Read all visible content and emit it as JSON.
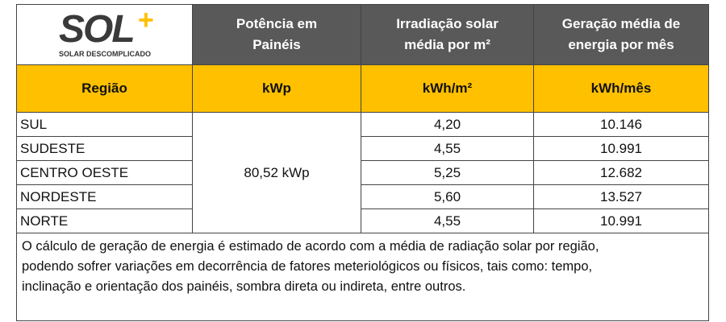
{
  "logo": {
    "name": "SOL",
    "plus": "+",
    "tagline": "SOLAR DESCOMPLICADO"
  },
  "header": {
    "columns": [
      [
        "Potência em",
        "Painéis"
      ],
      [
        "Irradiação solar",
        "média por m²"
      ],
      [
        "Geração média de",
        "energia por mês"
      ]
    ]
  },
  "units": [
    "Região",
    "kWp",
    "kWh/m²",
    "kWh/mês"
  ],
  "table": {
    "power": "80,52 kWp",
    "rows": [
      [
        "SUL",
        "4,20",
        "10.146"
      ],
      [
        "SUDESTE",
        "4,55",
        "10.991"
      ],
      [
        "CENTRO OESTE",
        "5,25",
        "12.682"
      ],
      [
        "NORDESTE",
        "5,60",
        "13.527"
      ],
      [
        "NORTE",
        "4,55",
        "10.991"
      ]
    ]
  },
  "note": [
    "O cálculo de geração de energia é estimado de acordo com a média de radiação solar por região,",
    "podendo sofrer variações em decorrência de fatores meteriológicos ou físicos, tais como: tempo,",
    "inclinação e orientação dos painéis, sombra direta ou indireta, entre outros."
  ]
}
